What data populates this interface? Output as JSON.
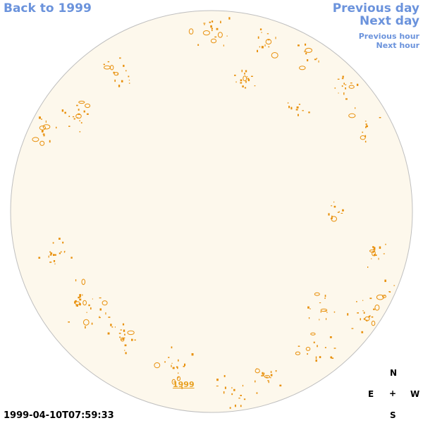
{
  "nav": {
    "back_label": "Back to 1999",
    "previous_day": "Previous day",
    "next_day": "Next day",
    "previous_hour": "Previous hour",
    "next_hour": "Next hour"
  },
  "year_link": "1999",
  "timestamp": "1999-04-10T07:59:33",
  "compass": {
    "north": "N",
    "east": "E",
    "center": "+",
    "west": "W",
    "south": "S"
  },
  "colors": {
    "link": "#6b93dc",
    "disk_fill": "#fdf8ec",
    "disk_edge": "#bfbfbf",
    "feature": "#e8900c"
  }
}
